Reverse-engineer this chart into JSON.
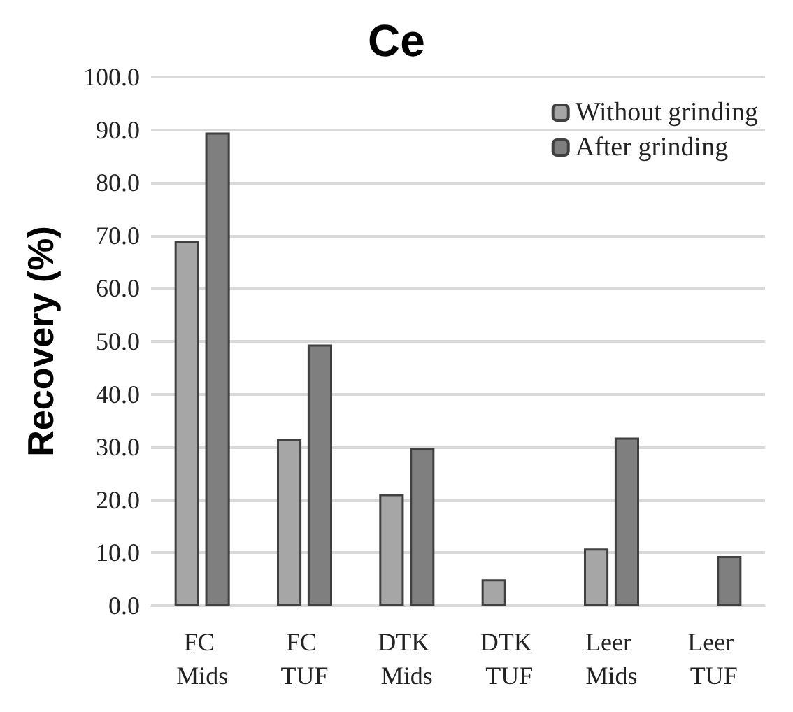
{
  "chart_data": {
    "type": "bar",
    "title": "Ce",
    "ylabel": "Recovery (%)",
    "categories": [
      "FC Mids",
      "FC TUF",
      "DTK Mids",
      "DTK TUF",
      "Leer Mids",
      "Leer TUF"
    ],
    "series": [
      {
        "name": "Without grinding",
        "color": "#a6a6a6",
        "values": [
          69.0,
          31.5,
          21.1,
          5.0,
          10.8,
          null
        ]
      },
      {
        "name": "After grinding",
        "color": "#7f7f7f",
        "values": [
          89.5,
          49.4,
          29.9,
          null,
          31.8,
          9.4
        ]
      }
    ],
    "ylim": [
      0,
      100
    ],
    "yticks": [
      {
        "value": 0,
        "label": "0.0"
      },
      {
        "value": 10,
        "label": "10.0"
      },
      {
        "value": 20,
        "label": "20.0"
      },
      {
        "value": 30,
        "label": "30.0"
      },
      {
        "value": 40,
        "label": "40.0"
      },
      {
        "value": 50,
        "label": "50.0"
      },
      {
        "value": 60,
        "label": "60.0"
      },
      {
        "value": 70,
        "label": "70.0"
      },
      {
        "value": 80,
        "label": "80.0"
      },
      {
        "value": 90,
        "label": "90.0"
      },
      {
        "value": 100,
        "label": "100.0"
      }
    ],
    "grid": "y",
    "legend": "top right"
  }
}
